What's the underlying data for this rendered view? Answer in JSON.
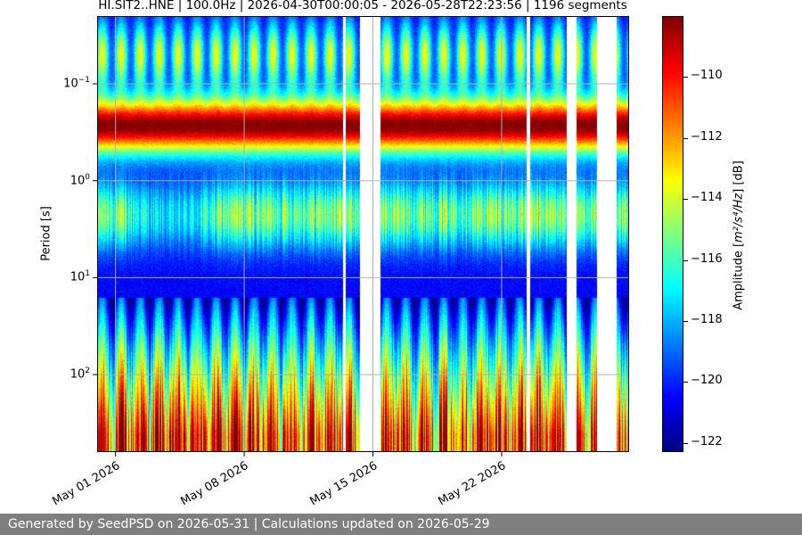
{
  "chart_data": {
    "type": "heatmap",
    "title": "HI.SIT2..HNE | 100.0Hz | 2026-04-30T00:00:05 - 2026-05-28T22:23:56 | 1196 segments",
    "ylabel": "Period [s]",
    "xlabel": "",
    "y_scale": "log",
    "y_inverted": true,
    "ylim": [
      0.02,
      630
    ],
    "y_ticks": [
      {
        "value": 0.1,
        "base": "10",
        "exp": "−1"
      },
      {
        "value": 1,
        "base": "10",
        "exp": "0"
      },
      {
        "value": 10,
        "base": "10",
        "exp": "1"
      },
      {
        "value": 100,
        "base": "10",
        "exp": "2"
      }
    ],
    "x_ticks": [
      {
        "date": "2026-05-01",
        "label": "May 01 2026"
      },
      {
        "date": "2026-05-08",
        "label": "May 08 2026"
      },
      {
        "date": "2026-05-15",
        "label": "May 15 2026"
      },
      {
        "date": "2026-05-22",
        "label": "May 22 2026"
      }
    ],
    "xlim": [
      "2026-04-30T00:00:05",
      "2026-05-28T22:23:56"
    ],
    "data_gaps": [
      [
        "2026-05-13T08:00",
        "2026-05-13T12:00"
      ],
      [
        "2026-05-14T07:00",
        "2026-05-15T09:00"
      ],
      [
        "2026-05-23T08:00",
        "2026-05-23T13:00"
      ],
      [
        "2026-05-25T12:00",
        "2026-05-26T01:00"
      ],
      [
        "2026-05-27T04:00",
        "2026-05-28T05:00"
      ]
    ],
    "grid": true,
    "colormap": "jet",
    "colorbar": {
      "label_main": "Amplitude [",
      "label_math": "m²/s⁴/Hz",
      "label_end": "] [dB]",
      "vmin": -122.3,
      "vmax": -108,
      "ticks": [
        "−110",
        "−112",
        "−114",
        "−116",
        "−118",
        "−120",
        "−122"
      ]
    }
  },
  "footer": {
    "text": "Generated by SeedPSD on 2026-05-31 | Calculations updated on 2026-05-29"
  }
}
